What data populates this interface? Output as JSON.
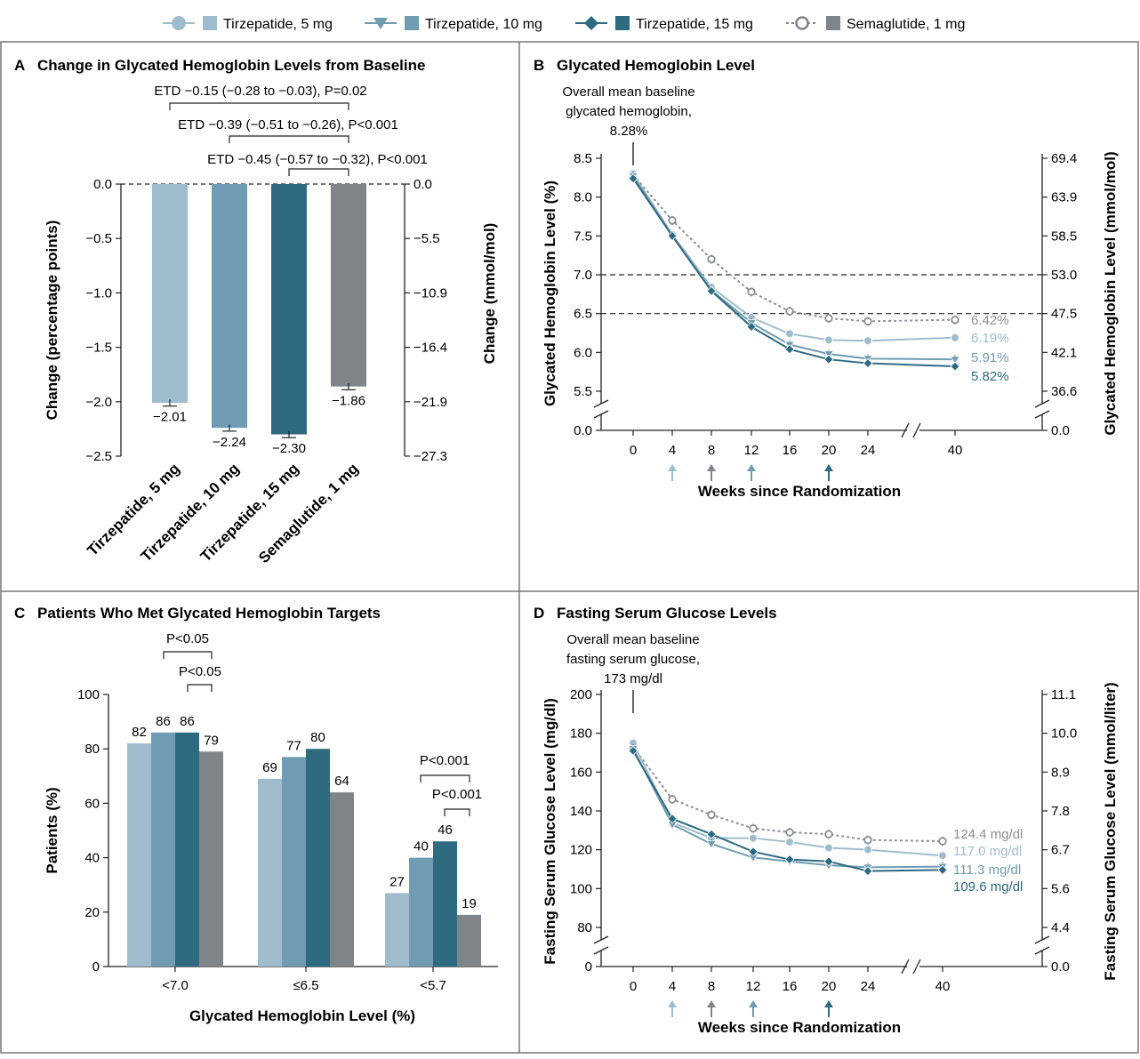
{
  "legend": [
    {
      "name": "Tirzepatide, 5 mg",
      "color": "#9fbccd",
      "marker": "circle"
    },
    {
      "name": "Tirzepatide, 10 mg",
      "color": "#6f9cb2",
      "marker": "triangle-down"
    },
    {
      "name": "Tirzepatide, 15 mg",
      "color": "#2e6a80",
      "marker": "diamond"
    },
    {
      "name": "Semaglutide, 1 mg",
      "color": "#7f8488",
      "marker": "open-circle-dashed"
    }
  ],
  "chart_data": [
    {
      "panel": "A",
      "type": "bar",
      "title": "Change in Glycated Hemoglobin Levels from Baseline",
      "ylabel": "Change (percentage points)",
      "ylabel_right": "Change (mmol/mol)",
      "ylim": [
        -2.5,
        0.0
      ],
      "yticks": [
        "0.0",
        "−0.5",
        "−1.0",
        "−1.5",
        "−2.0",
        "−2.5"
      ],
      "yticks_right": [
        "0.0",
        "−5.5",
        "−10.9",
        "−16.4",
        "−21.9",
        "−27.3"
      ],
      "categories": [
        "Tirzepatide, 5 mg",
        "Tirzepatide, 10 mg",
        "Tirzepatide, 15 mg",
        "Semaglutide, 1 mg"
      ],
      "values": [
        -2.01,
        -2.24,
        -2.3,
        -1.86
      ],
      "value_labels": [
        "−2.01",
        "−2.24",
        "−2.30",
        "−1.86"
      ],
      "error": [
        0.03,
        0.03,
        0.03,
        0.03
      ],
      "annotations": [
        "ETD −0.15 (−0.28 to −0.03), P=0.02",
        "ETD −0.39 (−0.51 to −0.26), P<0.001",
        "ETD −0.45 (−0.57 to −0.32), P<0.001"
      ]
    },
    {
      "panel": "B",
      "type": "line",
      "title": "Glycated Hemoglobin Level",
      "xlabel": "Weeks since Randomization",
      "ylabel": "Glycated Hemoglobin Level (%)",
      "ylabel_right": "Glycated Hemoglobin Level (mmol/mol)",
      "x": [
        0,
        4,
        8,
        12,
        16,
        20,
        24,
        40
      ],
      "xticks": [
        "0",
        "4",
        "8",
        "12",
        "16",
        "20",
        "24",
        "40"
      ],
      "yticks": [
        "0.0",
        "5.5",
        "6.0",
        "6.5",
        "7.0",
        "7.5",
        "8.0",
        "8.5"
      ],
      "yticks_right": [
        "0.0",
        "36.6",
        "42.1",
        "47.5",
        "53.0",
        "58.5",
        "63.9",
        "69.4"
      ],
      "reference_lines": [
        7.0,
        6.5
      ],
      "baseline_note": "Overall mean baseline glycated hemoglobin, 8.28%",
      "series": [
        {
          "name": "Tirzepatide, 5 mg",
          "values": [
            8.3,
            7.52,
            6.84,
            6.45,
            6.24,
            6.16,
            6.15,
            6.19
          ],
          "end_label": "6.19%"
        },
        {
          "name": "Tirzepatide, 10 mg",
          "values": [
            8.27,
            7.5,
            6.8,
            6.38,
            6.1,
            5.98,
            5.92,
            5.91
          ],
          "end_label": "5.91%"
        },
        {
          "name": "Tirzepatide, 15 mg",
          "values": [
            8.24,
            7.5,
            6.79,
            6.33,
            6.04,
            5.91,
            5.86,
            5.82
          ],
          "end_label": "5.82%"
        },
        {
          "name": "Semaglutide, 1 mg",
          "values": [
            8.29,
            7.7,
            7.2,
            6.78,
            6.53,
            6.44,
            6.4,
            6.42
          ],
          "end_label": "6.42%"
        }
      ]
    },
    {
      "panel": "C",
      "type": "bar",
      "title": "Patients Who Met Glycated Hemoglobin Targets",
      "xlabel": "Glycated Hemoglobin Level (%)",
      "ylabel": "Patients (%)",
      "ylim": [
        0,
        100
      ],
      "yticks": [
        "0",
        "20",
        "40",
        "60",
        "80",
        "100"
      ],
      "categories": [
        "<7.0",
        "≤6.5",
        "<5.7"
      ],
      "series": [
        {
          "name": "Tirzepatide, 5 mg",
          "values": [
            82,
            69,
            27
          ]
        },
        {
          "name": "Tirzepatide, 10 mg",
          "values": [
            86,
            77,
            40
          ]
        },
        {
          "name": "Tirzepatide, 15 mg",
          "values": [
            86,
            80,
            46
          ]
        },
        {
          "name": "Semaglutide, 1 mg",
          "values": [
            79,
            64,
            19
          ]
        }
      ],
      "annotations": [
        "P<0.05",
        "P<0.05",
        "P<0.001",
        "P<0.001"
      ]
    },
    {
      "panel": "D",
      "type": "line",
      "title": "Fasting Serum Glucose Levels",
      "xlabel": "Weeks since Randomization",
      "ylabel": "Fasting Serum Glucose Level (mg/dl)",
      "ylabel_right": "Fasting Serum Glucose Level (mmol/liter)",
      "x": [
        0,
        4,
        8,
        12,
        16,
        20,
        24,
        40
      ],
      "xticks": [
        "0",
        "4",
        "8",
        "12",
        "16",
        "20",
        "24",
        "40"
      ],
      "yticks": [
        "0",
        "80",
        "100",
        "120",
        "140",
        "160",
        "180",
        "200"
      ],
      "yticks_right": [
        "0.0",
        "4.4",
        "5.6",
        "6.7",
        "7.8",
        "8.9",
        "10.0",
        "11.1"
      ],
      "baseline_note": "Overall mean baseline fasting serum glucose, 173 mg/dl",
      "series": [
        {
          "name": "Tirzepatide, 5 mg",
          "values": [
            175,
            134,
            126,
            126,
            124,
            121,
            120,
            117.0
          ],
          "end_label": "117.0 mg/dl"
        },
        {
          "name": "Tirzepatide, 10 mg",
          "values": [
            172,
            133,
            123,
            116,
            114,
            112,
            111,
            111.3
          ],
          "end_label": "111.3 mg/dl"
        },
        {
          "name": "Tirzepatide, 15 mg",
          "values": [
            171,
            136,
            128,
            119,
            115,
            114,
            109,
            109.6
          ],
          "end_label": "109.6 mg/dl"
        },
        {
          "name": "Semaglutide, 1 mg",
          "values": [
            173,
            146,
            138,
            131,
            129,
            128,
            125,
            124.4
          ],
          "end_label": "124.4 mg/dl"
        }
      ]
    }
  ],
  "baseline_lines_b": [
    "Overall mean baseline",
    "glycated hemoglobin,",
    "8.28%"
  ],
  "baseline_lines_d": [
    "Overall mean baseline",
    "fasting serum glucose,",
    "173 mg/dl"
  ]
}
